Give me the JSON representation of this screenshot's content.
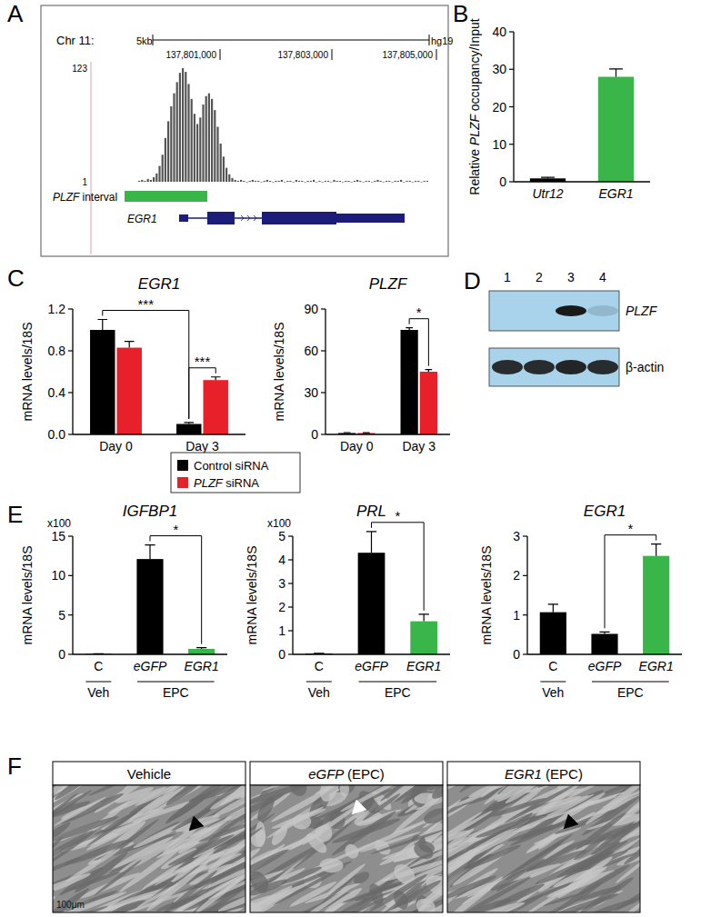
{
  "panel_labels": [
    "A",
    "B",
    "C",
    "D",
    "E",
    "F"
  ],
  "italic_terms": [
    "PLZF",
    "EGR1",
    "eGFP",
    "Utr12",
    "IGFBP1",
    "PRL"
  ],
  "track": {
    "chromosome": "Chr 11:",
    "scale_label": "5kb",
    "assembly": "hg19",
    "positions": [
      "137,801,000",
      "137,803,000",
      "137,805,000"
    ],
    "ylim": [
      1,
      123
    ],
    "signal": [
      2,
      3,
      2,
      4,
      3,
      6,
      10,
      18,
      30,
      48,
      66,
      82,
      96,
      108,
      118,
      123,
      119,
      106,
      90,
      74,
      63,
      70,
      84,
      93,
      96,
      90,
      78,
      60,
      42,
      28,
      16,
      9,
      5,
      3,
      2,
      3,
      2,
      1,
      2,
      3,
      2,
      2,
      1,
      2,
      3,
      2,
      1,
      2,
      2,
      3,
      1,
      2,
      2,
      1,
      3,
      2,
      2,
      1,
      2,
      2,
      3,
      1,
      2,
      1,
      2,
      2,
      1,
      3,
      2,
      2,
      1,
      2,
      2,
      1,
      2,
      3,
      2,
      1,
      2,
      2,
      1,
      2,
      3,
      2,
      1,
      2,
      2,
      1,
      2,
      2,
      3,
      1,
      2,
      2,
      1,
      2,
      2,
      1,
      2,
      2
    ],
    "interval_label": "PLZF interval",
    "gene": "EGR1"
  },
  "blot": {
    "lanes": [
      "1",
      "2",
      "3",
      "4"
    ],
    "rows": [
      {
        "label": "PLZF",
        "intensity": [
          0,
          0,
          1,
          0.15
        ]
      },
      {
        "label": "β-actin",
        "intensity": [
          0.9,
          0.9,
          0.95,
          0.9
        ]
      }
    ]
  },
  "images": {
    "panels": [
      {
        "label": "Vehicle",
        "arrow": "black"
      },
      {
        "label": "eGFP (EPC)",
        "arrow": "white"
      },
      {
        "label": "EGR1 (EPC)",
        "arrow": "black"
      }
    ],
    "scale_bar": "100μm"
  },
  "chart_data": [
    {
      "type": "bar",
      "ylabel": "Relative PLZF occupancy/Input",
      "categories": [
        "Utr12",
        "EGR1"
      ],
      "values": [
        0.9,
        28
      ],
      "errors": [
        0.3,
        2.1
      ],
      "colors": [
        "#000000",
        "#3ab54a"
      ],
      "ylim": [
        0,
        40
      ],
      "yticks": [
        0,
        10,
        20,
        30,
        40
      ]
    },
    {
      "type": "bar",
      "title": "EGR1",
      "ylabel": "mRNA levels/18S",
      "categories": [
        "Day 0",
        "Day 3"
      ],
      "series": [
        {
          "name": "Control siRNA",
          "color": "#000000",
          "values": [
            1.0,
            0.1
          ],
          "errors": [
            0.1,
            0.015
          ]
        },
        {
          "name": "PLZF siRNA",
          "color": "#e8202a",
          "values": [
            0.83,
            0.52
          ],
          "errors": [
            0.06,
            0.03
          ]
        }
      ],
      "ylim": [
        0,
        1.2
      ],
      "yticks": [
        {
          "value": 0,
          "label": "0.0"
        },
        0.4,
        0.8,
        1.2
      ],
      "legend": "bottom",
      "significance": [
        {
          "label": "***",
          "from": [
            0,
            0
          ],
          "to": [
            0,
            1
          ]
        },
        {
          "label": "***",
          "from": [
            0,
            1
          ],
          "to": [
            1,
            1
          ]
        }
      ]
    },
    {
      "type": "bar",
      "title": "PLZF",
      "ylabel": "mRNA levels/18S",
      "categories": [
        "Day 0",
        "Day 3"
      ],
      "series": [
        {
          "color": "#000000",
          "values": [
            1,
            75
          ],
          "errors": [
            0.3,
            1.5
          ]
        },
        {
          "color": "#e8202a",
          "values": [
            1,
            45
          ],
          "errors": [
            0.2,
            1.5
          ]
        }
      ],
      "ylim": [
        0,
        90
      ],
      "yticks": [
        0,
        30,
        60,
        90
      ],
      "significance": [
        {
          "label": "*",
          "from": [
            0,
            1
          ],
          "to": [
            1,
            1
          ]
        }
      ]
    },
    {
      "type": "bar",
      "title": "IGFBP1",
      "multiplier": "x100",
      "ylabel": "mRNA levels/18S",
      "categories": [
        "C",
        "eGFP",
        "EGR1"
      ],
      "x_groups": [
        {
          "label": "Veh",
          "span": [
            0,
            0
          ]
        },
        {
          "label": "EPC",
          "span": [
            1,
            2
          ]
        }
      ],
      "values": [
        0.05,
        12.1,
        0.7
      ],
      "errors": [
        0.02,
        1.8,
        0.15
      ],
      "colors": [
        "#000000",
        "#000000",
        "#3ab54a"
      ],
      "ylim": [
        0,
        15
      ],
      "yticks": [
        0,
        5,
        10,
        15
      ],
      "significance": [
        {
          "label": "*",
          "from": 1,
          "to": 2
        }
      ]
    },
    {
      "type": "bar",
      "title": "PRL",
      "multiplier": "x100",
      "ylabel": "mRNA levels/18S",
      "categories": [
        "C",
        "eGFP",
        "EGR1"
      ],
      "x_groups": [
        {
          "label": "Veh",
          "span": [
            0,
            0
          ]
        },
        {
          "label": "EPC",
          "span": [
            1,
            2
          ]
        }
      ],
      "values": [
        0.03,
        4.3,
        1.4
      ],
      "errors": [
        0.01,
        0.9,
        0.3
      ],
      "colors": [
        "#000000",
        "#000000",
        "#3ab54a"
      ],
      "ylim": [
        0,
        5
      ],
      "yticks": [
        0,
        1,
        2,
        3,
        4,
        5
      ],
      "significance": [
        {
          "label": "*",
          "from": 1,
          "to": 2
        }
      ]
    },
    {
      "type": "bar",
      "title": "EGR1",
      "ylabel": "mRNA levels/18S",
      "categories": [
        "C",
        "eGFP",
        "EGR1"
      ],
      "x_groups": [
        {
          "label": "Veh",
          "span": [
            0,
            0
          ]
        },
        {
          "label": "EPC",
          "span": [
            1,
            2
          ]
        }
      ],
      "values": [
        1.07,
        0.52,
        2.5
      ],
      "errors": [
        0.2,
        0.05,
        0.3
      ],
      "colors": [
        "#000000",
        "#000000",
        "#3ab54a"
      ],
      "ylim": [
        0,
        3
      ],
      "yticks": [
        0,
        1,
        2,
        3
      ],
      "significance": [
        {
          "label": "*",
          "from": 1,
          "to": 2
        }
      ]
    }
  ]
}
